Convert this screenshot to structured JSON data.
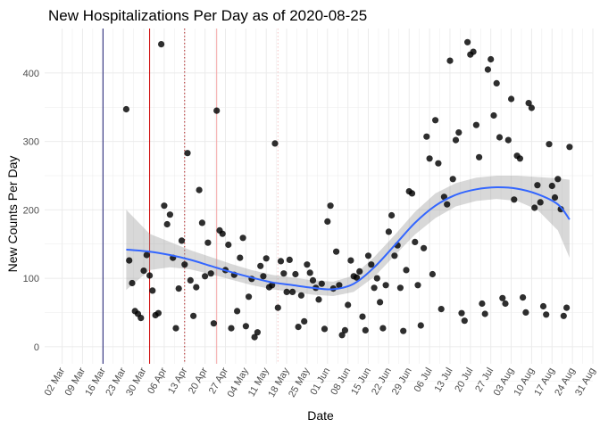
{
  "chart_data": {
    "type": "scatter",
    "title": "New Hospitalizations Per Day as of 2020-08-25",
    "xlabel": "Date",
    "ylabel": "New Counts Per Day",
    "xlim": [
      "2020-02-25",
      "2020-08-31"
    ],
    "ylim": [
      -25,
      465
    ],
    "grid": true,
    "legend": "none",
    "x_ticks": [
      {
        "date": "2020-03-02",
        "label": "02 Mar"
      },
      {
        "date": "2020-03-09",
        "label": "09 Mar"
      },
      {
        "date": "2020-03-16",
        "label": "16 Mar"
      },
      {
        "date": "2020-03-23",
        "label": "23 Mar"
      },
      {
        "date": "2020-03-30",
        "label": "30 Mar"
      },
      {
        "date": "2020-04-06",
        "label": "06 Apr"
      },
      {
        "date": "2020-04-13",
        "label": "13 Apr"
      },
      {
        "date": "2020-04-20",
        "label": "20 Apr"
      },
      {
        "date": "2020-04-27",
        "label": "27 Apr"
      },
      {
        "date": "2020-05-04",
        "label": "04 May"
      },
      {
        "date": "2020-05-11",
        "label": "11 May"
      },
      {
        "date": "2020-05-18",
        "label": "18 May"
      },
      {
        "date": "2020-05-25",
        "label": "25 May"
      },
      {
        "date": "2020-06-01",
        "label": "01 Jun"
      },
      {
        "date": "2020-06-08",
        "label": "08 Jun"
      },
      {
        "date": "2020-06-15",
        "label": "15 Jun"
      },
      {
        "date": "2020-06-22",
        "label": "22 Jun"
      },
      {
        "date": "2020-06-29",
        "label": "29 Jun"
      },
      {
        "date": "2020-07-06",
        "label": "06 Jul"
      },
      {
        "date": "2020-07-13",
        "label": "13 Jul"
      },
      {
        "date": "2020-07-20",
        "label": "20 Jul"
      },
      {
        "date": "2020-07-27",
        "label": "27 Jul"
      },
      {
        "date": "2020-08-03",
        "label": "03 Aug"
      },
      {
        "date": "2020-08-10",
        "label": "10 Aug"
      },
      {
        "date": "2020-08-17",
        "label": "17 Aug"
      },
      {
        "date": "2020-08-24",
        "label": "24 Aug"
      },
      {
        "date": "2020-08-31",
        "label": "31 Aug"
      }
    ],
    "y_ticks": [
      0,
      100,
      200,
      300,
      400
    ],
    "vlines": [
      {
        "date": "2020-03-16",
        "color": "#191970",
        "style": "solid"
      },
      {
        "date": "2020-04-01",
        "color": "#cc0000",
        "style": "solid"
      },
      {
        "date": "2020-04-13",
        "color": "#b22222",
        "style": "dotted"
      },
      {
        "date": "2020-04-24",
        "color": "#f4a6a6",
        "style": "solid"
      },
      {
        "date": "2020-05-15",
        "color": "#f4c2c2",
        "style": "dotted"
      }
    ],
    "colors": {
      "points": "#000000",
      "smooth": "#3366ff",
      "ribbon": "#999999",
      "grid": "#ebebeb"
    },
    "points": [
      [
        "2020-03-24",
        347
      ],
      [
        "2020-03-25",
        126
      ],
      [
        "2020-03-26",
        93
      ],
      [
        "2020-03-27",
        52
      ],
      [
        "2020-03-28",
        48
      ],
      [
        "2020-03-29",
        42
      ],
      [
        "2020-03-30",
        111
      ],
      [
        "2020-03-31",
        134
      ],
      [
        "2020-04-01",
        104
      ],
      [
        "2020-04-02",
        82
      ],
      [
        "2020-04-03",
        46
      ],
      [
        "2020-04-04",
        49
      ],
      [
        "2020-04-05",
        442
      ],
      [
        "2020-04-06",
        206
      ],
      [
        "2020-04-07",
        179
      ],
      [
        "2020-04-08",
        193
      ],
      [
        "2020-04-09",
        130
      ],
      [
        "2020-04-10",
        27
      ],
      [
        "2020-04-11",
        85
      ],
      [
        "2020-04-12",
        155
      ],
      [
        "2020-04-13",
        120
      ],
      [
        "2020-04-14",
        283
      ],
      [
        "2020-04-15",
        97
      ],
      [
        "2020-04-16",
        45
      ],
      [
        "2020-04-17",
        87
      ],
      [
        "2020-04-18",
        229
      ],
      [
        "2020-04-19",
        181
      ],
      [
        "2020-04-20",
        103
      ],
      [
        "2020-04-21",
        152
      ],
      [
        "2020-04-22",
        107
      ],
      [
        "2020-04-23",
        34
      ],
      [
        "2020-04-24",
        345
      ],
      [
        "2020-04-25",
        170
      ],
      [
        "2020-04-26",
        165
      ],
      [
        "2020-04-27",
        112
      ],
      [
        "2020-04-28",
        149
      ],
      [
        "2020-04-29",
        27
      ],
      [
        "2020-04-30",
        105
      ],
      [
        "2020-05-01",
        52
      ],
      [
        "2020-05-02",
        130
      ],
      [
        "2020-05-03",
        159
      ],
      [
        "2020-05-04",
        30
      ],
      [
        "2020-05-05",
        73
      ],
      [
        "2020-05-06",
        99
      ],
      [
        "2020-05-07",
        14
      ],
      [
        "2020-05-08",
        21
      ],
      [
        "2020-05-09",
        118
      ],
      [
        "2020-05-10",
        103
      ],
      [
        "2020-05-11",
        129
      ],
      [
        "2020-05-12",
        87
      ],
      [
        "2020-05-13",
        90
      ],
      [
        "2020-05-14",
        297
      ],
      [
        "2020-05-15",
        57
      ],
      [
        "2020-05-16",
        125
      ],
      [
        "2020-05-17",
        107
      ],
      [
        "2020-05-18",
        80
      ],
      [
        "2020-05-19",
        127
      ],
      [
        "2020-05-20",
        80
      ],
      [
        "2020-05-21",
        106
      ],
      [
        "2020-05-22",
        29
      ],
      [
        "2020-05-23",
        75
      ],
      [
        "2020-05-24",
        37
      ],
      [
        "2020-05-25",
        120
      ],
      [
        "2020-05-26",
        108
      ],
      [
        "2020-05-27",
        97
      ],
      [
        "2020-05-28",
        86
      ],
      [
        "2020-05-29",
        69
      ],
      [
        "2020-05-30",
        92
      ],
      [
        "2020-05-31",
        26
      ],
      [
        "2020-06-01",
        183
      ],
      [
        "2020-06-02",
        206
      ],
      [
        "2020-06-03",
        85
      ],
      [
        "2020-06-04",
        139
      ],
      [
        "2020-06-05",
        90
      ],
      [
        "2020-06-06",
        17
      ],
      [
        "2020-06-07",
        24
      ],
      [
        "2020-06-08",
        61
      ],
      [
        "2020-06-09",
        126
      ],
      [
        "2020-06-10",
        103
      ],
      [
        "2020-06-11",
        101
      ],
      [
        "2020-06-12",
        110
      ],
      [
        "2020-06-13",
        44
      ],
      [
        "2020-06-14",
        24
      ],
      [
        "2020-06-15",
        133
      ],
      [
        "2020-06-16",
        120
      ],
      [
        "2020-06-17",
        86
      ],
      [
        "2020-06-18",
        100
      ],
      [
        "2020-06-19",
        65
      ],
      [
        "2020-06-20",
        27
      ],
      [
        "2020-06-21",
        90
      ],
      [
        "2020-06-22",
        168
      ],
      [
        "2020-06-23",
        192
      ],
      [
        "2020-06-24",
        133
      ],
      [
        "2020-06-25",
        148
      ],
      [
        "2020-06-26",
        86
      ],
      [
        "2020-06-27",
        23
      ],
      [
        "2020-06-28",
        112
      ],
      [
        "2020-06-29",
        227
      ],
      [
        "2020-06-30",
        224
      ],
      [
        "2020-07-01",
        153
      ],
      [
        "2020-07-02",
        90
      ],
      [
        "2020-07-03",
        31
      ],
      [
        "2020-07-04",
        144
      ],
      [
        "2020-07-05",
        307
      ],
      [
        "2020-07-06",
        275
      ],
      [
        "2020-07-07",
        106
      ],
      [
        "2020-07-08",
        331
      ],
      [
        "2020-07-09",
        268
      ],
      [
        "2020-07-10",
        55
      ],
      [
        "2020-07-11",
        219
      ],
      [
        "2020-07-12",
        208
      ],
      [
        "2020-07-13",
        418
      ],
      [
        "2020-07-14",
        245
      ],
      [
        "2020-07-15",
        302
      ],
      [
        "2020-07-16",
        313
      ],
      [
        "2020-07-17",
        49
      ],
      [
        "2020-07-18",
        38
      ],
      [
        "2020-07-19",
        445
      ],
      [
        "2020-07-20",
        427
      ],
      [
        "2020-07-21",
        431
      ],
      [
        "2020-07-22",
        324
      ],
      [
        "2020-07-23",
        277
      ],
      [
        "2020-07-24",
        63
      ],
      [
        "2020-07-25",
        48
      ],
      [
        "2020-07-26",
        405
      ],
      [
        "2020-07-27",
        420
      ],
      [
        "2020-07-28",
        338
      ],
      [
        "2020-07-29",
        385
      ],
      [
        "2020-07-30",
        306
      ],
      [
        "2020-07-31",
        71
      ],
      [
        "2020-08-01",
        63
      ],
      [
        "2020-08-02",
        302
      ],
      [
        "2020-08-03",
        362
      ],
      [
        "2020-08-04",
        215
      ],
      [
        "2020-08-05",
        279
      ],
      [
        "2020-08-06",
        275
      ],
      [
        "2020-08-07",
        72
      ],
      [
        "2020-08-08",
        50
      ],
      [
        "2020-08-09",
        356
      ],
      [
        "2020-08-10",
        349
      ],
      [
        "2020-08-11",
        203
      ],
      [
        "2020-08-12",
        236
      ],
      [
        "2020-08-13",
        211
      ],
      [
        "2020-08-14",
        59
      ],
      [
        "2020-08-15",
        47
      ],
      [
        "2020-08-16",
        296
      ],
      [
        "2020-08-17",
        235
      ],
      [
        "2020-08-18",
        218
      ],
      [
        "2020-08-19",
        245
      ],
      [
        "2020-08-20",
        201
      ],
      [
        "2020-08-21",
        45
      ],
      [
        "2020-08-22",
        57
      ],
      [
        "2020-08-23",
        292
      ]
    ],
    "smooth": [
      [
        "2020-03-24",
        142,
        83,
        200
      ],
      [
        "2020-04-01",
        139,
        112,
        165
      ],
      [
        "2020-04-08",
        134,
        116,
        153
      ],
      [
        "2020-04-15",
        127,
        113,
        141
      ],
      [
        "2020-04-22",
        118,
        106,
        131
      ],
      [
        "2020-04-29",
        109,
        98,
        121
      ],
      [
        "2020-05-06",
        101,
        90,
        112
      ],
      [
        "2020-05-13",
        94,
        84,
        105
      ],
      [
        "2020-05-20",
        90,
        80,
        101
      ],
      [
        "2020-05-27",
        86,
        76,
        97
      ],
      [
        "2020-06-03",
        84,
        74,
        95
      ],
      [
        "2020-06-10",
        92,
        80,
        104
      ],
      [
        "2020-06-17",
        116,
        102,
        131
      ],
      [
        "2020-06-24",
        148,
        133,
        163
      ],
      [
        "2020-07-01",
        181,
        164,
        197
      ],
      [
        "2020-07-08",
        206,
        188,
        224
      ],
      [
        "2020-07-15",
        222,
        205,
        239
      ],
      [
        "2020-07-22",
        230,
        213,
        247
      ],
      [
        "2020-07-29",
        233,
        216,
        250
      ],
      [
        "2020-08-05",
        231,
        213,
        250
      ],
      [
        "2020-08-12",
        223,
        200,
        248
      ],
      [
        "2020-08-19",
        208,
        170,
        246
      ],
      [
        "2020-08-23",
        186,
        130,
        244
      ]
    ]
  }
}
